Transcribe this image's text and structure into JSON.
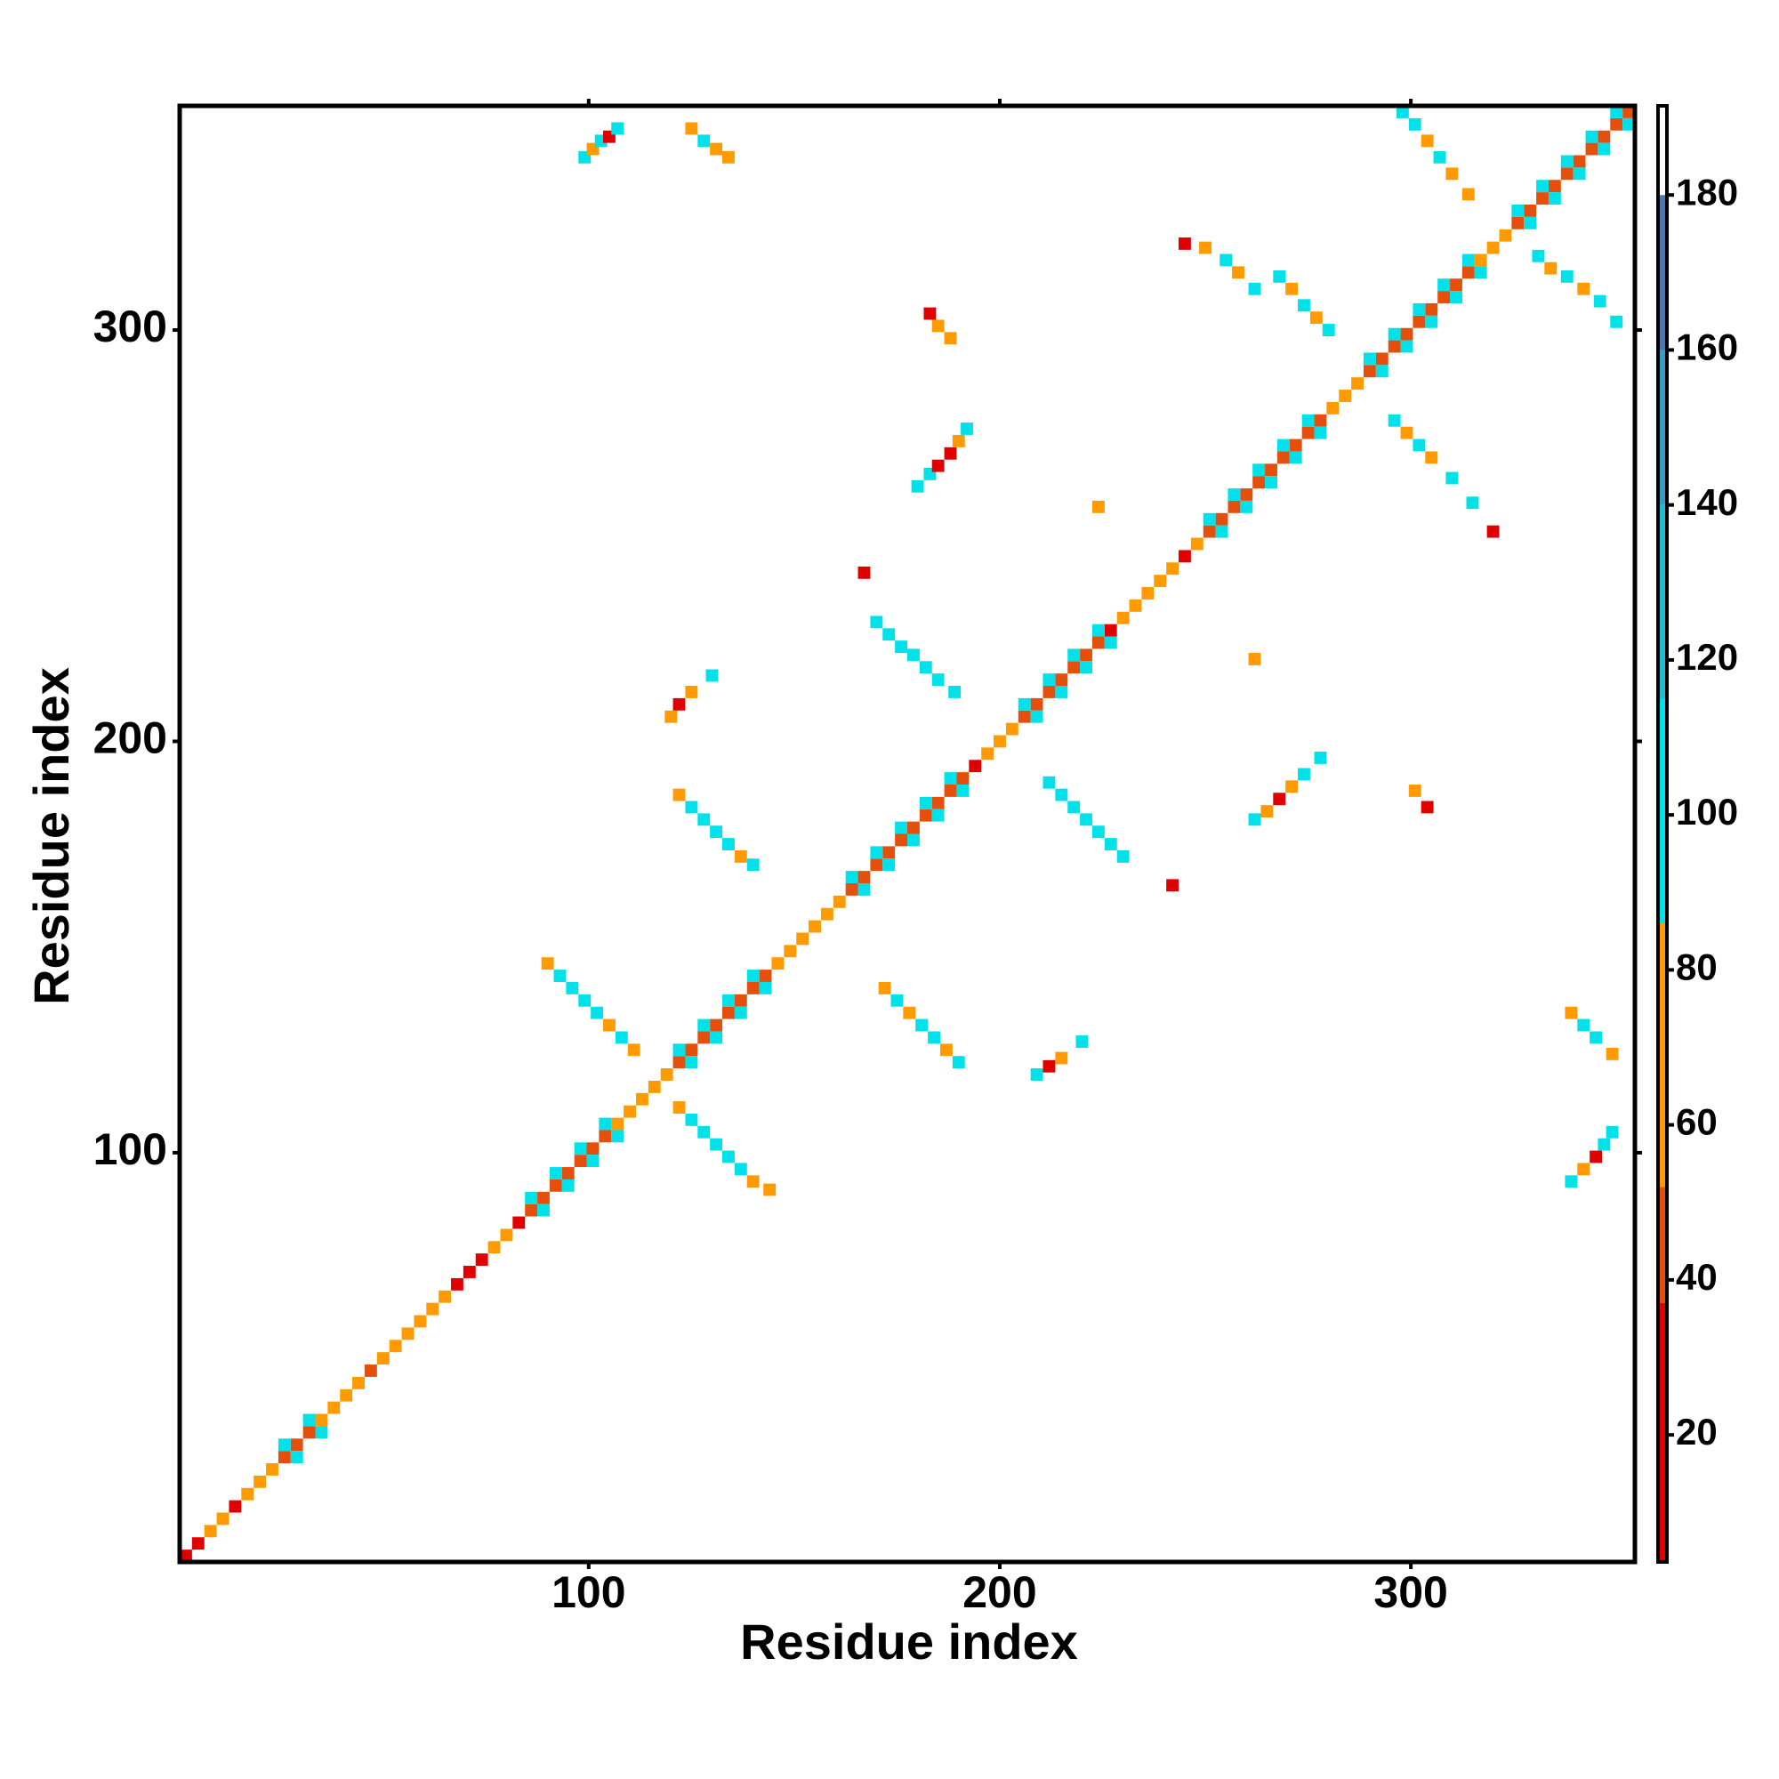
{
  "chart_data": {
    "type": "heatmap",
    "x_label": "Residue index",
    "y_label": "Residue index",
    "xlim": [
      0.5,
      354.5
    ],
    "ylim": [
      0.5,
      354.5
    ],
    "xticks": [
      100,
      200,
      300
    ],
    "yticks": [
      100,
      200,
      300
    ],
    "colorbar": {
      "zlim": [
        3.6,
        191.5
      ],
      "zticks": [
        20,
        40,
        60,
        80,
        100,
        120,
        140,
        160,
        180
      ],
      "bands": [
        {
          "range": [
            3.6,
            37
          ],
          "color": "#e00000"
        },
        {
          "range": [
            37,
            52
          ],
          "color": "#e4500c"
        },
        {
          "range": [
            52,
            86
          ],
          "color": "#ff9a00"
        },
        {
          "range": [
            86,
            115
          ],
          "color": "#00e1ea"
        },
        {
          "range": [
            115,
            140
          ],
          "color": "#22bcd2"
        },
        {
          "range": [
            140,
            160
          ],
          "color": "#3a9ac4"
        },
        {
          "range": [
            160,
            180
          ],
          "color": "#4c76b0"
        },
        {
          "range": [
            180,
            191.5
          ],
          "color": "#ffffff"
        }
      ]
    },
    "cells": [
      [
        2,
        2,
        25
      ],
      [
        5,
        5,
        25
      ],
      [
        8,
        8,
        60
      ],
      [
        11,
        11,
        60
      ],
      [
        14,
        14,
        25
      ],
      [
        17,
        17,
        60
      ],
      [
        20,
        20,
        60
      ],
      [
        23,
        23,
        60
      ],
      [
        26,
        26,
        45
      ],
      [
        29,
        29,
        45
      ],
      [
        32,
        32,
        45
      ],
      [
        35,
        35,
        60
      ],
      [
        38,
        38,
        60
      ],
      [
        41,
        41,
        60
      ],
      [
        44,
        44,
        60
      ],
      [
        47,
        47,
        45
      ],
      [
        50,
        50,
        60
      ],
      [
        53,
        53,
        60
      ],
      [
        56,
        56,
        60
      ],
      [
        59,
        59,
        60
      ],
      [
        62,
        62,
        60
      ],
      [
        65,
        65,
        60
      ],
      [
        68,
        68,
        25
      ],
      [
        71,
        71,
        25
      ],
      [
        74,
        74,
        25
      ],
      [
        77,
        77,
        60
      ],
      [
        80,
        80,
        60
      ],
      [
        83,
        83,
        25
      ],
      [
        86,
        86,
        45
      ],
      [
        89,
        89,
        45
      ],
      [
        92,
        92,
        45
      ],
      [
        95,
        95,
        45
      ],
      [
        98,
        98,
        45
      ],
      [
        101,
        101,
        45
      ],
      [
        104,
        104,
        45
      ],
      [
        107,
        107,
        60
      ],
      [
        110,
        110,
        60
      ],
      [
        113,
        113,
        60
      ],
      [
        116,
        116,
        60
      ],
      [
        119,
        119,
        60
      ],
      [
        122,
        122,
        45
      ],
      [
        125,
        125,
        45
      ],
      [
        128,
        128,
        45
      ],
      [
        131,
        131,
        45
      ],
      [
        134,
        134,
        45
      ],
      [
        137,
        137,
        45
      ],
      [
        140,
        140,
        45
      ],
      [
        143,
        143,
        45
      ],
      [
        146,
        146,
        60
      ],
      [
        149,
        149,
        60
      ],
      [
        152,
        152,
        60
      ],
      [
        155,
        155,
        60
      ],
      [
        158,
        158,
        60
      ],
      [
        161,
        161,
        60
      ],
      [
        164,
        164,
        45
      ],
      [
        167,
        167,
        45
      ],
      [
        170,
        170,
        45
      ],
      [
        173,
        173,
        45
      ],
      [
        176,
        176,
        45
      ],
      [
        179,
        179,
        45
      ],
      [
        182,
        182,
        45
      ],
      [
        185,
        185,
        45
      ],
      [
        188,
        188,
        45
      ],
      [
        191,
        191,
        45
      ],
      [
        194,
        194,
        25
      ],
      [
        197,
        197,
        60
      ],
      [
        200,
        200,
        60
      ],
      [
        203,
        203,
        60
      ],
      [
        206,
        206,
        45
      ],
      [
        209,
        209,
        45
      ],
      [
        212,
        212,
        45
      ],
      [
        215,
        215,
        45
      ],
      [
        218,
        218,
        45
      ],
      [
        221,
        221,
        45
      ],
      [
        224,
        224,
        45
      ],
      [
        227,
        227,
        25
      ],
      [
        230,
        230,
        60
      ],
      [
        233,
        233,
        60
      ],
      [
        236,
        236,
        60
      ],
      [
        239,
        239,
        60
      ],
      [
        242,
        242,
        60
      ],
      [
        245,
        245,
        25
      ],
      [
        248,
        248,
        60
      ],
      [
        251,
        251,
        45
      ],
      [
        254,
        254,
        45
      ],
      [
        257,
        257,
        45
      ],
      [
        260,
        260,
        45
      ],
      [
        263,
        263,
        45
      ],
      [
        266,
        266,
        45
      ],
      [
        269,
        269,
        45
      ],
      [
        272,
        272,
        45
      ],
      [
        275,
        275,
        45
      ],
      [
        278,
        278,
        45
      ],
      [
        281,
        281,
        60
      ],
      [
        284,
        284,
        60
      ],
      [
        287,
        287,
        60
      ],
      [
        290,
        290,
        45
      ],
      [
        293,
        293,
        45
      ],
      [
        296,
        296,
        45
      ],
      [
        299,
        299,
        45
      ],
      [
        302,
        302,
        45
      ],
      [
        305,
        305,
        45
      ],
      [
        308,
        308,
        45
      ],
      [
        311,
        311,
        45
      ],
      [
        314,
        314,
        45
      ],
      [
        317,
        317,
        60
      ],
      [
        320,
        320,
        60
      ],
      [
        323,
        323,
        60
      ],
      [
        326,
        326,
        45
      ],
      [
        329,
        329,
        45
      ],
      [
        332,
        332,
        45
      ],
      [
        335,
        335,
        45
      ],
      [
        338,
        338,
        45
      ],
      [
        341,
        341,
        45
      ],
      [
        344,
        344,
        45
      ],
      [
        347,
        347,
        45
      ],
      [
        350,
        350,
        45
      ],
      [
        353,
        353,
        45
      ],
      [
        29,
        26,
        105
      ],
      [
        26,
        29,
        105
      ],
      [
        35,
        32,
        105
      ],
      [
        32,
        35,
        105
      ],
      [
        89,
        86,
        105
      ],
      [
        86,
        89,
        105
      ],
      [
        95,
        92,
        105
      ],
      [
        92,
        95,
        105
      ],
      [
        101,
        98,
        105
      ],
      [
        98,
        101,
        105
      ],
      [
        107,
        104,
        105
      ],
      [
        104,
        107,
        105
      ],
      [
        125,
        122,
        105
      ],
      [
        122,
        125,
        105
      ],
      [
        131,
        128,
        105
      ],
      [
        128,
        131,
        105
      ],
      [
        137,
        134,
        105
      ],
      [
        134,
        137,
        105
      ],
      [
        143,
        140,
        105
      ],
      [
        140,
        143,
        105
      ],
      [
        167,
        164,
        105
      ],
      [
        164,
        167,
        105
      ],
      [
        173,
        170,
        105
      ],
      [
        170,
        173,
        105
      ],
      [
        179,
        176,
        105
      ],
      [
        176,
        179,
        105
      ],
      [
        185,
        182,
        105
      ],
      [
        182,
        185,
        105
      ],
      [
        191,
        188,
        105
      ],
      [
        188,
        191,
        105
      ],
      [
        209,
        206,
        105
      ],
      [
        206,
        209,
        105
      ],
      [
        215,
        212,
        105
      ],
      [
        212,
        215,
        105
      ],
      [
        221,
        218,
        105
      ],
      [
        218,
        221,
        105
      ],
      [
        227,
        224,
        105
      ],
      [
        224,
        227,
        105
      ],
      [
        254,
        251,
        105
      ],
      [
        251,
        254,
        105
      ],
      [
        260,
        257,
        105
      ],
      [
        257,
        260,
        105
      ],
      [
        266,
        263,
        105
      ],
      [
        263,
        266,
        105
      ],
      [
        272,
        269,
        105
      ],
      [
        269,
        272,
        105
      ],
      [
        278,
        275,
        105
      ],
      [
        275,
        278,
        105
      ],
      [
        293,
        290,
        105
      ],
      [
        290,
        293,
        105
      ],
      [
        299,
        296,
        105
      ],
      [
        296,
        299,
        105
      ],
      [
        305,
        302,
        105
      ],
      [
        302,
        305,
        105
      ],
      [
        311,
        308,
        105
      ],
      [
        308,
        311,
        105
      ],
      [
        317,
        314,
        105
      ],
      [
        314,
        317,
        105
      ],
      [
        329,
        326,
        105
      ],
      [
        326,
        329,
        105
      ],
      [
        335,
        332,
        105
      ],
      [
        332,
        335,
        105
      ],
      [
        341,
        338,
        105
      ],
      [
        338,
        341,
        105
      ],
      [
        347,
        344,
        105
      ],
      [
        344,
        347,
        105
      ],
      [
        353,
        350,
        105
      ],
      [
        350,
        353,
        105
      ],
      [
        99,
        342,
        100
      ],
      [
        101,
        344,
        60
      ],
      [
        103,
        346,
        100
      ],
      [
        105,
        347,
        25
      ],
      [
        107,
        349,
        100
      ],
      [
        125,
        349,
        60
      ],
      [
        128,
        346,
        100
      ],
      [
        131,
        344,
        60
      ],
      [
        134,
        342,
        60
      ],
      [
        183,
        304,
        25
      ],
      [
        185,
        301,
        60
      ],
      [
        188,
        298,
        60
      ],
      [
        180,
        262,
        100
      ],
      [
        183,
        265,
        100
      ],
      [
        185,
        267,
        25
      ],
      [
        188,
        270,
        25
      ],
      [
        190,
        273,
        60
      ],
      [
        192,
        276,
        100
      ],
      [
        170,
        229,
        100
      ],
      [
        173,
        226,
        100
      ],
      [
        176,
        223,
        100
      ],
      [
        179,
        221,
        100
      ],
      [
        182,
        218,
        100
      ],
      [
        185,
        215,
        100
      ],
      [
        189,
        212,
        100
      ],
      [
        120,
        206,
        60
      ],
      [
        122,
        209,
        25
      ],
      [
        125,
        212,
        60
      ],
      [
        130,
        216,
        100
      ],
      [
        122,
        187,
        60
      ],
      [
        125,
        184,
        100
      ],
      [
        128,
        181,
        100
      ],
      [
        131,
        178,
        100
      ],
      [
        134,
        175,
        100
      ],
      [
        137,
        172,
        60
      ],
      [
        140,
        170,
        100
      ],
      [
        90,
        146,
        60
      ],
      [
        93,
        143,
        100
      ],
      [
        96,
        140,
        100
      ],
      [
        99,
        137,
        100
      ],
      [
        102,
        134,
        100
      ],
      [
        105,
        131,
        60
      ],
      [
        108,
        128,
        100
      ],
      [
        111,
        125,
        60
      ],
      [
        122,
        111,
        60
      ],
      [
        125,
        108,
        100
      ],
      [
        128,
        105,
        100
      ],
      [
        131,
        102,
        100
      ],
      [
        134,
        99,
        100
      ],
      [
        137,
        96,
        100
      ],
      [
        140,
        93,
        60
      ],
      [
        144,
        91,
        60
      ],
      [
        172,
        140,
        60
      ],
      [
        175,
        137,
        100
      ],
      [
        178,
        134,
        60
      ],
      [
        181,
        131,
        100
      ],
      [
        184,
        128,
        100
      ],
      [
        187,
        125,
        60
      ],
      [
        190,
        122,
        100
      ],
      [
        209,
        119,
        100
      ],
      [
        212,
        121,
        25
      ],
      [
        215,
        123,
        60
      ],
      [
        220,
        127,
        100
      ],
      [
        212,
        190,
        100
      ],
      [
        215,
        187,
        100
      ],
      [
        218,
        184,
        100
      ],
      [
        221,
        181,
        100
      ],
      [
        224,
        178,
        100
      ],
      [
        227,
        175,
        100
      ],
      [
        230,
        172,
        100
      ],
      [
        262,
        181,
        100
      ],
      [
        265,
        183,
        60
      ],
      [
        268,
        186,
        25
      ],
      [
        271,
        189,
        60
      ],
      [
        274,
        192,
        100
      ],
      [
        278,
        196,
        100
      ],
      [
        245,
        321,
        25
      ],
      [
        250,
        320,
        60
      ],
      [
        255,
        317,
        100
      ],
      [
        258,
        314,
        60
      ],
      [
        262,
        310,
        100
      ],
      [
        268,
        313,
        100
      ],
      [
        271,
        310,
        60
      ],
      [
        274,
        306,
        100
      ],
      [
        277,
        303,
        60
      ],
      [
        280,
        300,
        100
      ],
      [
        296,
        278,
        100
      ],
      [
        299,
        275,
        60
      ],
      [
        302,
        272,
        100
      ],
      [
        305,
        269,
        60
      ],
      [
        310,
        264,
        100
      ],
      [
        315,
        258,
        100
      ],
      [
        320,
        251,
        25
      ],
      [
        298,
        353,
        100
      ],
      [
        301,
        350,
        100
      ],
      [
        304,
        346,
        60
      ],
      [
        307,
        342,
        100
      ],
      [
        310,
        338,
        60
      ],
      [
        314,
        333,
        60
      ],
      [
        331,
        318,
        100
      ],
      [
        334,
        315,
        60
      ],
      [
        338,
        313,
        100
      ],
      [
        342,
        310,
        60
      ],
      [
        346,
        307,
        100
      ],
      [
        350,
        302,
        100
      ],
      [
        339,
        134,
        60
      ],
      [
        342,
        131,
        100
      ],
      [
        345,
        128,
        100
      ],
      [
        349,
        124,
        60
      ],
      [
        339,
        93,
        100
      ],
      [
        342,
        96,
        60
      ],
      [
        345,
        99,
        25
      ],
      [
        347,
        102,
        100
      ],
      [
        349,
        105,
        100
      ],
      [
        167,
        241,
        25
      ],
      [
        224,
        257,
        60
      ],
      [
        262,
        220,
        60
      ],
      [
        242,
        165,
        25
      ],
      [
        301,
        188,
        60
      ],
      [
        304,
        184,
        25
      ]
    ]
  }
}
